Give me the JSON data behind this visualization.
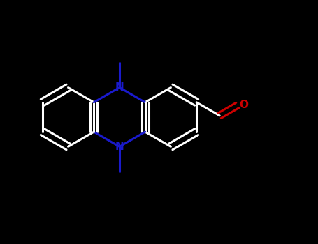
{
  "bg": "#000000",
  "wc": "#ffffff",
  "nc": "#1a1acc",
  "oc": "#cc0000",
  "lw": 2.2,
  "figsize": [
    4.55,
    3.5
  ],
  "dpi": 100,
  "xlim": [
    -6.0,
    10.0
  ],
  "ylim": [
    -5.5,
    6.0
  ]
}
